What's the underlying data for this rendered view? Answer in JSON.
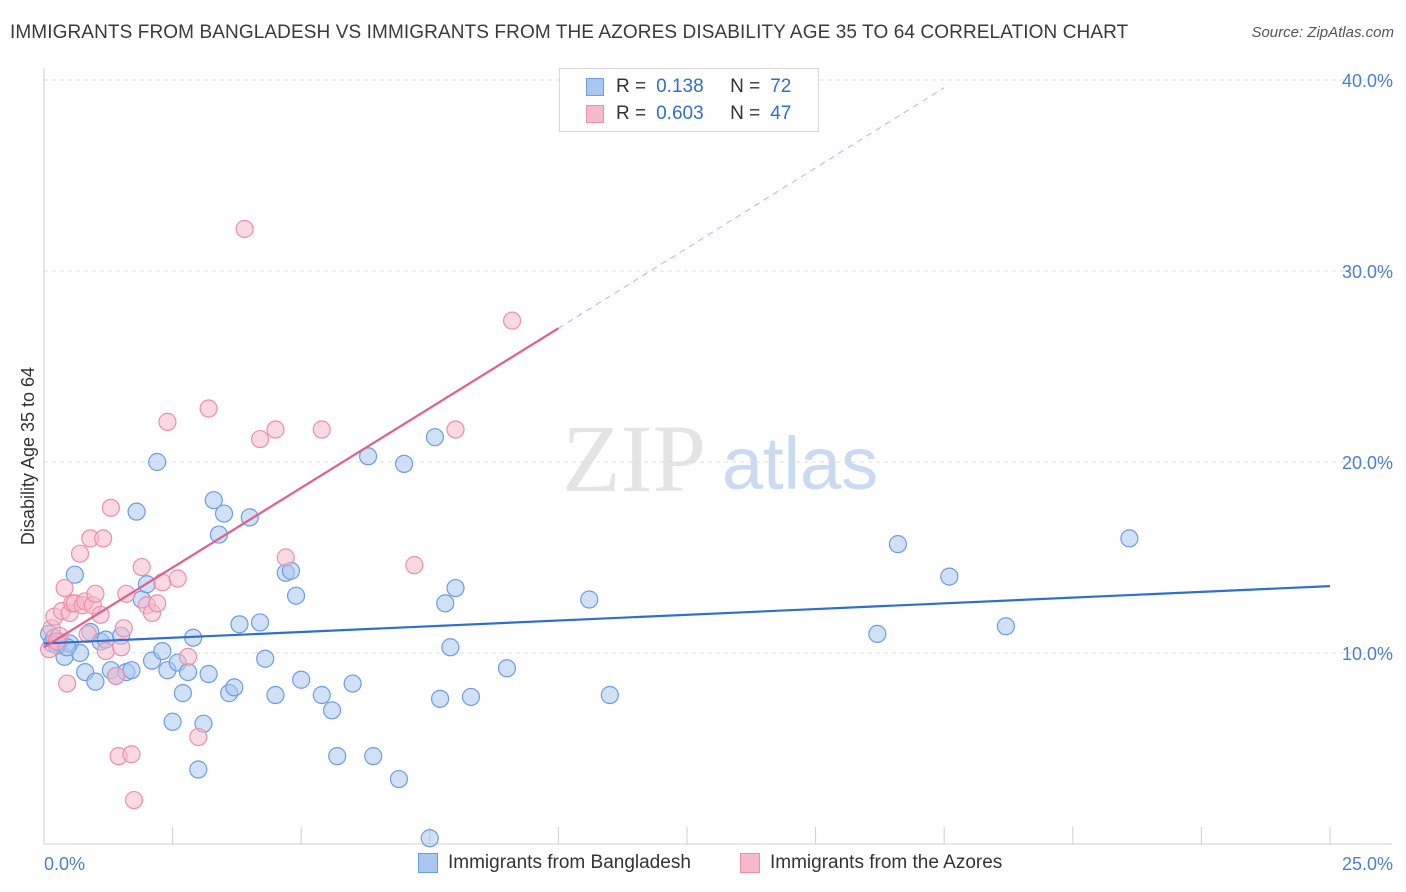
{
  "title": "IMMIGRANTS FROM BANGLADESH VS IMMIGRANTS FROM THE AZORES DISABILITY AGE 35 TO 64 CORRELATION CHART",
  "source": "Source: ZipAtlas.com",
  "watermark": {
    "zip": "ZIP",
    "atlas": "atlas"
  },
  "legend": {
    "r_label": "R =",
    "n_label": "N =",
    "series": [
      {
        "r": "0.138",
        "n": "72"
      },
      {
        "r": "0.603",
        "n": "47"
      }
    ]
  },
  "bottom_legend": [
    "Immigrants from Bangladesh",
    "Immigrants from the Azores"
  ],
  "colors": {
    "blue_fill": "#a9c7f0",
    "blue_stroke": "#6b9ee0",
    "blue_line": "#2f6fd0",
    "pink_fill": "#f6b9cc",
    "pink_stroke": "#ec8fab",
    "pink_line": "#e0608a",
    "tick_text": "#4a7fd0",
    "grid": "#dddddd"
  },
  "chart_data": {
    "type": "scatter",
    "title": "IMMIGRANTS FROM BANGLADESH VS IMMIGRANTS FROM THE AZORES DISABILITY AGE 35 TO 64 CORRELATION CHART",
    "xlabel": "",
    "ylabel": "Disability Age 35 to 64",
    "xlim": [
      0,
      25
    ],
    "ylim": [
      0,
      40
    ],
    "x_tick_labels": [
      "0.0%",
      "25.0%"
    ],
    "y_ticks": [
      10,
      20,
      30,
      40
    ],
    "y_tick_labels": [
      "10.0%",
      "20.0%",
      "30.0%",
      "40.0%"
    ],
    "grid": true,
    "legend_position": "top-center",
    "series": [
      {
        "name": "Immigrants from Bangladesh",
        "color": "#6b9ee0",
        "r": 0.138,
        "n": 72,
        "trend": {
          "x": [
            0,
            25
          ],
          "y": [
            10.5,
            13.5
          ]
        },
        "points": [
          [
            0.1,
            11.0
          ],
          [
            0.15,
            10.5
          ],
          [
            0.2,
            10.8
          ],
          [
            0.3,
            10.6
          ],
          [
            0.4,
            9.8
          ],
          [
            0.5,
            10.5
          ],
          [
            0.6,
            14.1
          ],
          [
            0.7,
            10.0
          ],
          [
            0.8,
            9.0
          ],
          [
            0.9,
            11.1
          ],
          [
            1.0,
            8.5
          ],
          [
            1.1,
            10.6
          ],
          [
            1.2,
            10.7
          ],
          [
            1.3,
            9.1
          ],
          [
            1.4,
            8.8
          ],
          [
            1.5,
            10.9
          ],
          [
            1.6,
            9.0
          ],
          [
            1.7,
            9.1
          ],
          [
            1.8,
            17.4
          ],
          [
            1.9,
            12.8
          ],
          [
            2.0,
            13.6
          ],
          [
            2.1,
            9.6
          ],
          [
            2.2,
            20.0
          ],
          [
            2.3,
            10.1
          ],
          [
            2.4,
            9.1
          ],
          [
            2.5,
            6.4
          ],
          [
            2.6,
            9.5
          ],
          [
            2.7,
            7.9
          ],
          [
            2.8,
            9.0
          ],
          [
            2.9,
            10.8
          ],
          [
            3.0,
            3.9
          ],
          [
            3.1,
            6.3
          ],
          [
            3.2,
            8.9
          ],
          [
            3.3,
            18.0
          ],
          [
            3.4,
            16.2
          ],
          [
            3.5,
            17.3
          ],
          [
            3.6,
            7.9
          ],
          [
            3.7,
            8.2
          ],
          [
            3.8,
            11.5
          ],
          [
            4.0,
            17.1
          ],
          [
            4.2,
            11.6
          ],
          [
            4.3,
            9.7
          ],
          [
            4.5,
            7.8
          ],
          [
            4.7,
            14.2
          ],
          [
            4.8,
            14.3
          ],
          [
            4.9,
            13.0
          ],
          [
            5.0,
            8.6
          ],
          [
            5.4,
            7.8
          ],
          [
            5.6,
            7.0
          ],
          [
            5.7,
            4.6
          ],
          [
            6.0,
            8.4
          ],
          [
            6.3,
            20.3
          ],
          [
            6.4,
            4.6
          ],
          [
            6.9,
            3.4
          ],
          [
            7.0,
            19.9
          ],
          [
            7.5,
            0.3
          ],
          [
            7.6,
            21.3
          ],
          [
            7.7,
            7.6
          ],
          [
            7.8,
            12.6
          ],
          [
            7.9,
            10.3
          ],
          [
            8.0,
            13.4
          ],
          [
            8.3,
            7.7
          ],
          [
            9.0,
            9.2
          ],
          [
            10.6,
            12.8
          ],
          [
            11.0,
            7.8
          ],
          [
            16.2,
            11.0
          ],
          [
            16.6,
            15.7
          ],
          [
            17.6,
            14.0
          ],
          [
            18.7,
            11.4
          ],
          [
            21.1,
            16.0
          ],
          [
            0.25,
            10.4
          ],
          [
            0.45,
            10.3
          ]
        ]
      },
      {
        "name": "Immigrants from the Azores",
        "color": "#ec8fab",
        "r": 0.603,
        "n": 47,
        "trend": {
          "x": [
            0,
            10
          ],
          "y": [
            10.3,
            27.0
          ]
        },
        "trend_extension": {
          "x": [
            10,
            17.5
          ],
          "y": [
            27.0,
            39.6
          ]
        },
        "points": [
          [
            0.1,
            10.2
          ],
          [
            0.15,
            11.3
          ],
          [
            0.2,
            11.9
          ],
          [
            0.3,
            10.9
          ],
          [
            0.35,
            12.2
          ],
          [
            0.4,
            13.4
          ],
          [
            0.45,
            8.4
          ],
          [
            0.5,
            12.1
          ],
          [
            0.55,
            12.6
          ],
          [
            0.6,
            12.6
          ],
          [
            0.7,
            15.2
          ],
          [
            0.75,
            12.5
          ],
          [
            0.8,
            12.7
          ],
          [
            0.85,
            11.0
          ],
          [
            0.9,
            16.0
          ],
          [
            0.95,
            12.5
          ],
          [
            1.0,
            13.1
          ],
          [
            1.1,
            12.0
          ],
          [
            1.15,
            16.0
          ],
          [
            1.2,
            10.1
          ],
          [
            1.3,
            17.6
          ],
          [
            1.4,
            8.8
          ],
          [
            1.45,
            4.6
          ],
          [
            1.5,
            10.3
          ],
          [
            1.55,
            11.3
          ],
          [
            1.6,
            13.1
          ],
          [
            1.7,
            4.7
          ],
          [
            1.75,
            2.3
          ],
          [
            1.9,
            14.5
          ],
          [
            2.0,
            12.5
          ],
          [
            2.1,
            12.1
          ],
          [
            2.2,
            12.6
          ],
          [
            2.3,
            13.7
          ],
          [
            2.4,
            22.1
          ],
          [
            2.6,
            13.9
          ],
          [
            2.8,
            9.8
          ],
          [
            3.0,
            5.6
          ],
          [
            3.2,
            22.8
          ],
          [
            3.9,
            32.2
          ],
          [
            4.2,
            21.2
          ],
          [
            4.5,
            21.7
          ],
          [
            4.7,
            15.0
          ],
          [
            5.4,
            21.7
          ],
          [
            7.2,
            14.6
          ],
          [
            8.0,
            21.7
          ],
          [
            9.1,
            27.4
          ],
          [
            0.25,
            10.6
          ]
        ]
      }
    ]
  }
}
